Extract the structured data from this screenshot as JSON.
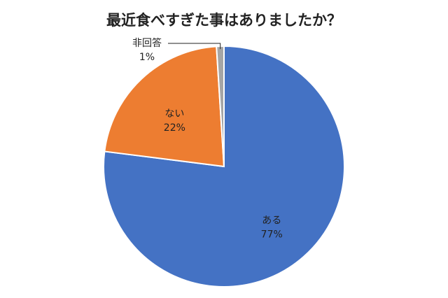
{
  "chart_data": {
    "type": "pie",
    "title": "最近食べすぎた事はありましたか？",
    "categories": [
      "ある",
      "ない",
      "非回答"
    ],
    "values": [
      77,
      22,
      1
    ],
    "value_labels": [
      "77%",
      "22%",
      "1%"
    ],
    "colors": [
      "#4472c4",
      "#ed7d31",
      "#a5a5a5"
    ]
  }
}
